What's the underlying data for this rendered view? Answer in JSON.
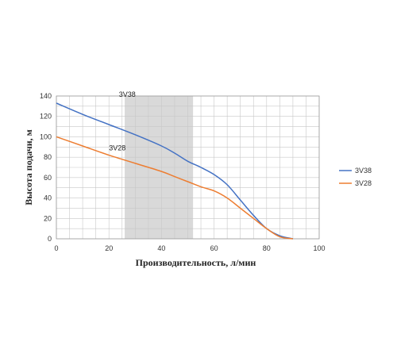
{
  "chart_data": {
    "type": "line",
    "xlabel": "Производительность, л/мин",
    "ylabel": "Высота подачи, м",
    "xlim": [
      0,
      100
    ],
    "ylim": [
      0,
      140
    ],
    "xticks": [
      0,
      20,
      40,
      60,
      80,
      100
    ],
    "yticks": [
      0,
      20,
      40,
      60,
      80,
      100,
      120,
      140
    ],
    "grid": true,
    "minor_grid_x_step": 5,
    "legend_position": "right",
    "highlight_range_x": [
      26,
      52
    ],
    "highlight_color": "#d9d9d9",
    "series": [
      {
        "name": "3V38",
        "color": "#4472c4",
        "x": [
          0,
          10,
          20,
          30,
          40,
          45,
          50,
          55,
          60,
          65,
          70,
          75,
          80,
          85,
          90
        ],
        "y": [
          133,
          122,
          112,
          102,
          91,
          84,
          76,
          70,
          63,
          53,
          38,
          23,
          10,
          3,
          0
        ]
      },
      {
        "name": "3V28",
        "color": "#ed7d31",
        "x": [
          0,
          10,
          20,
          30,
          40,
          45,
          50,
          55,
          60,
          65,
          70,
          75,
          80,
          85,
          90
        ],
        "y": [
          100,
          91,
          82,
          74,
          66,
          61,
          56,
          51,
          47,
          40,
          30,
          20,
          10,
          2,
          0
        ]
      }
    ]
  }
}
